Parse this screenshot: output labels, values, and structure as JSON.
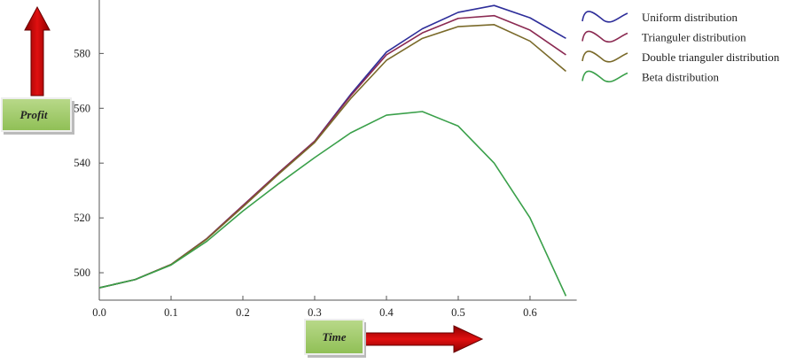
{
  "chart_data": {
    "type": "line",
    "x_label": "Time",
    "y_label": "Profit",
    "x": [
      0,
      0.05,
      0.1,
      0.15,
      0.2,
      0.25,
      0.3,
      0.35,
      0.4,
      0.45,
      0.5,
      0.55,
      0.6,
      0.65
    ],
    "series": [
      {
        "name": "Uniform distribution",
        "color": "#2e2e9a",
        "values": [
          494.5,
          497.5,
          503,
          512.5,
          524.5,
          536.5,
          548,
          565,
          580.5,
          589,
          595,
          597.5,
          593,
          585.5
        ]
      },
      {
        "name": "Trianguler distribution",
        "color": "#8b2a52",
        "values": [
          494.5,
          497.5,
          503,
          512.5,
          524.5,
          536.5,
          548,
          564.5,
          579.5,
          587.5,
          592.8,
          593.8,
          588.5,
          579.5
        ]
      },
      {
        "name": "Double trianguler distribution",
        "color": "#7a6a2a",
        "values": [
          494.5,
          497.5,
          503,
          512.3,
          524,
          536,
          547.5,
          563.5,
          577.5,
          585.5,
          589.8,
          590.5,
          584.5,
          573.5
        ]
      },
      {
        "name": "Beta distribution",
        "color": "#3aa04a",
        "values": [
          494.5,
          497.5,
          502.8,
          511.5,
          522.5,
          532.5,
          542,
          551,
          557.5,
          558.8,
          553.5,
          540,
          520,
          491.5
        ]
      }
    ],
    "xlim": [
      0,
      0.665
    ],
    "ylim": [
      490,
      599.5
    ],
    "xticks": [
      {
        "value": 0,
        "label": "0.0"
      },
      0.1,
      0.2,
      0.3,
      0.4,
      0.5,
      0.6
    ],
    "yticks": [
      500,
      520,
      540,
      560,
      580
    ],
    "grid": false
  }
}
